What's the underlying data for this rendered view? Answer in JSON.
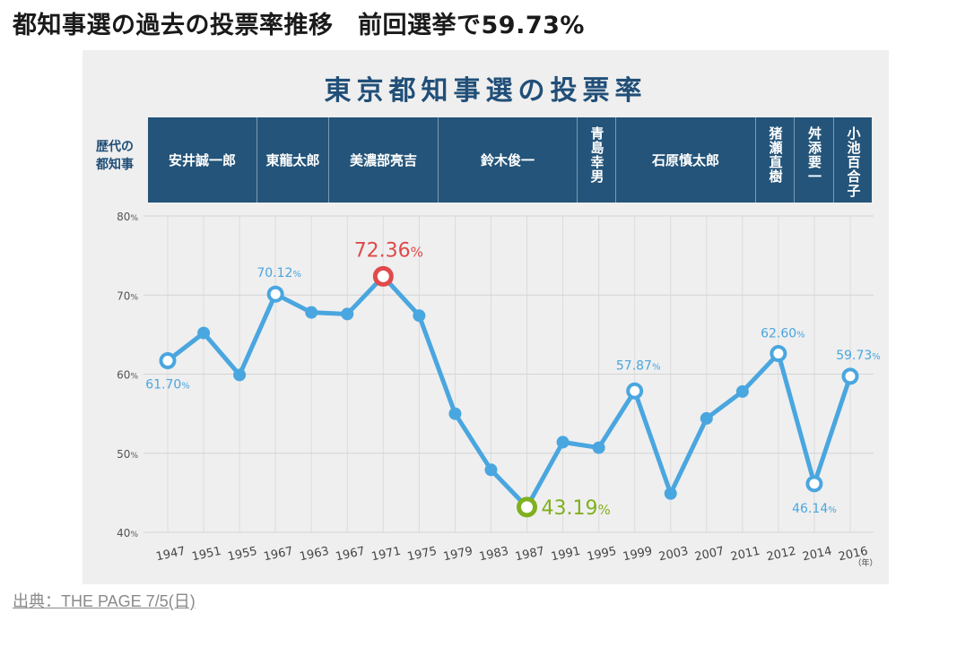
{
  "headline": "都知事選の過去の投票率推移　前回選挙で59.73%",
  "source_link": "出典：THE PAGE 7/5(日)",
  "colors": {
    "line": "#4aa6df",
    "panel_bg": "#efefef",
    "band": "#245479",
    "max": "#e04a4a",
    "min": "#7fb01e",
    "label": "#4aa6df"
  },
  "chart_data": {
    "type": "line",
    "title": "東京都知事選の投票率",
    "governor_label": "歴代の\n都知事",
    "governors": [
      "安井誠一郎",
      "東龍太郎",
      "美濃部亮吉",
      "鈴木俊一",
      "青島幸男",
      "石原慎太郎",
      "猪瀬直樹",
      "舛添要一",
      "小池百合子"
    ],
    "x_unit": "（年）",
    "x": [
      "1947",
      "1951",
      "1955",
      "1967",
      "1963",
      "1967",
      "1971",
      "1975",
      "1979",
      "1983",
      "1987",
      "1991",
      "1995",
      "1999",
      "2003",
      "2007",
      "2011",
      "2012",
      "2014",
      "2016"
    ],
    "values": [
      61.7,
      65.2,
      59.9,
      70.12,
      67.8,
      67.6,
      72.36,
      67.4,
      55.0,
      47.9,
      43.19,
      51.4,
      50.7,
      57.87,
      44.9,
      54.4,
      57.8,
      62.6,
      46.14,
      59.73
    ],
    "ylim": [
      40,
      80
    ],
    "y_ticks": [
      "40",
      "50",
      "60",
      "70",
      "80"
    ],
    "y_unit": "%",
    "labels": [
      {
        "index": 0,
        "value": "61.70",
        "unit": "%",
        "style": "normal"
      },
      {
        "index": 3,
        "value": "70.12",
        "unit": "%",
        "style": "normal"
      },
      {
        "index": 6,
        "value": "72.36",
        "unit": "%",
        "style": "max"
      },
      {
        "index": 10,
        "value": "43.19",
        "unit": "%",
        "style": "min"
      },
      {
        "index": 13,
        "value": "57.87",
        "unit": "%",
        "style": "normal"
      },
      {
        "index": 17,
        "value": "62.60",
        "unit": "%",
        "style": "normal"
      },
      {
        "index": 18,
        "value": "46.14",
        "unit": "%",
        "style": "normal"
      },
      {
        "index": 19,
        "value": "59.73",
        "unit": "%",
        "style": "normal"
      }
    ],
    "grid": true
  }
}
